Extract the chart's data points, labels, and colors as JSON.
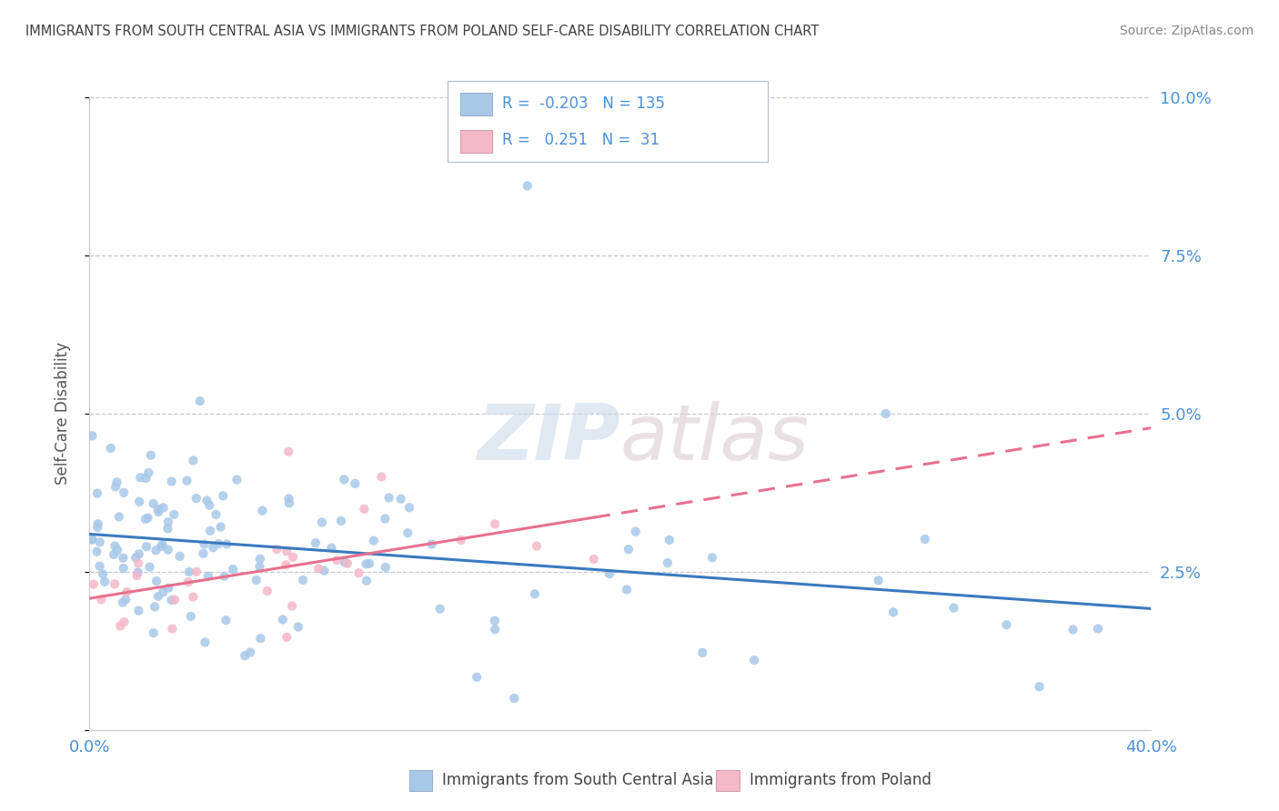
{
  "title": "IMMIGRANTS FROM SOUTH CENTRAL ASIA VS IMMIGRANTS FROM POLAND SELF-CARE DISABILITY CORRELATION CHART",
  "source": "Source: ZipAtlas.com",
  "ylabel": "Self-Care Disability",
  "xlim": [
    0.0,
    0.4
  ],
  "ylim": [
    0.0,
    0.1
  ],
  "yticks": [
    0.0,
    0.025,
    0.05,
    0.075,
    0.1
  ],
  "ytick_labels": [
    "",
    "2.5%",
    "5.0%",
    "7.5%",
    "10.0%"
  ],
  "xticks": [
    0.0,
    0.1,
    0.2,
    0.3,
    0.4
  ],
  "xtick_labels": [
    "0.0%",
    "",
    "",
    "",
    "40.0%"
  ],
  "series1_color": "#a8c8e8",
  "series2_color": "#f4b8c8",
  "series1_line_color": "#3a7abf",
  "series2_line_color": "#e87090",
  "series1_label": "Immigrants from South Central Asia",
  "series2_label": "Immigrants from Poland",
  "R1": -0.203,
  "N1": 135,
  "R2": 0.251,
  "N2": 31,
  "watermark_zip": "ZIP",
  "watermark_atlas": "atlas",
  "background_color": "#ffffff",
  "grid_color": "#c8c8d0",
  "title_color": "#404040",
  "axis_color": "#4a90d9",
  "tick_color": "#4a90d9"
}
